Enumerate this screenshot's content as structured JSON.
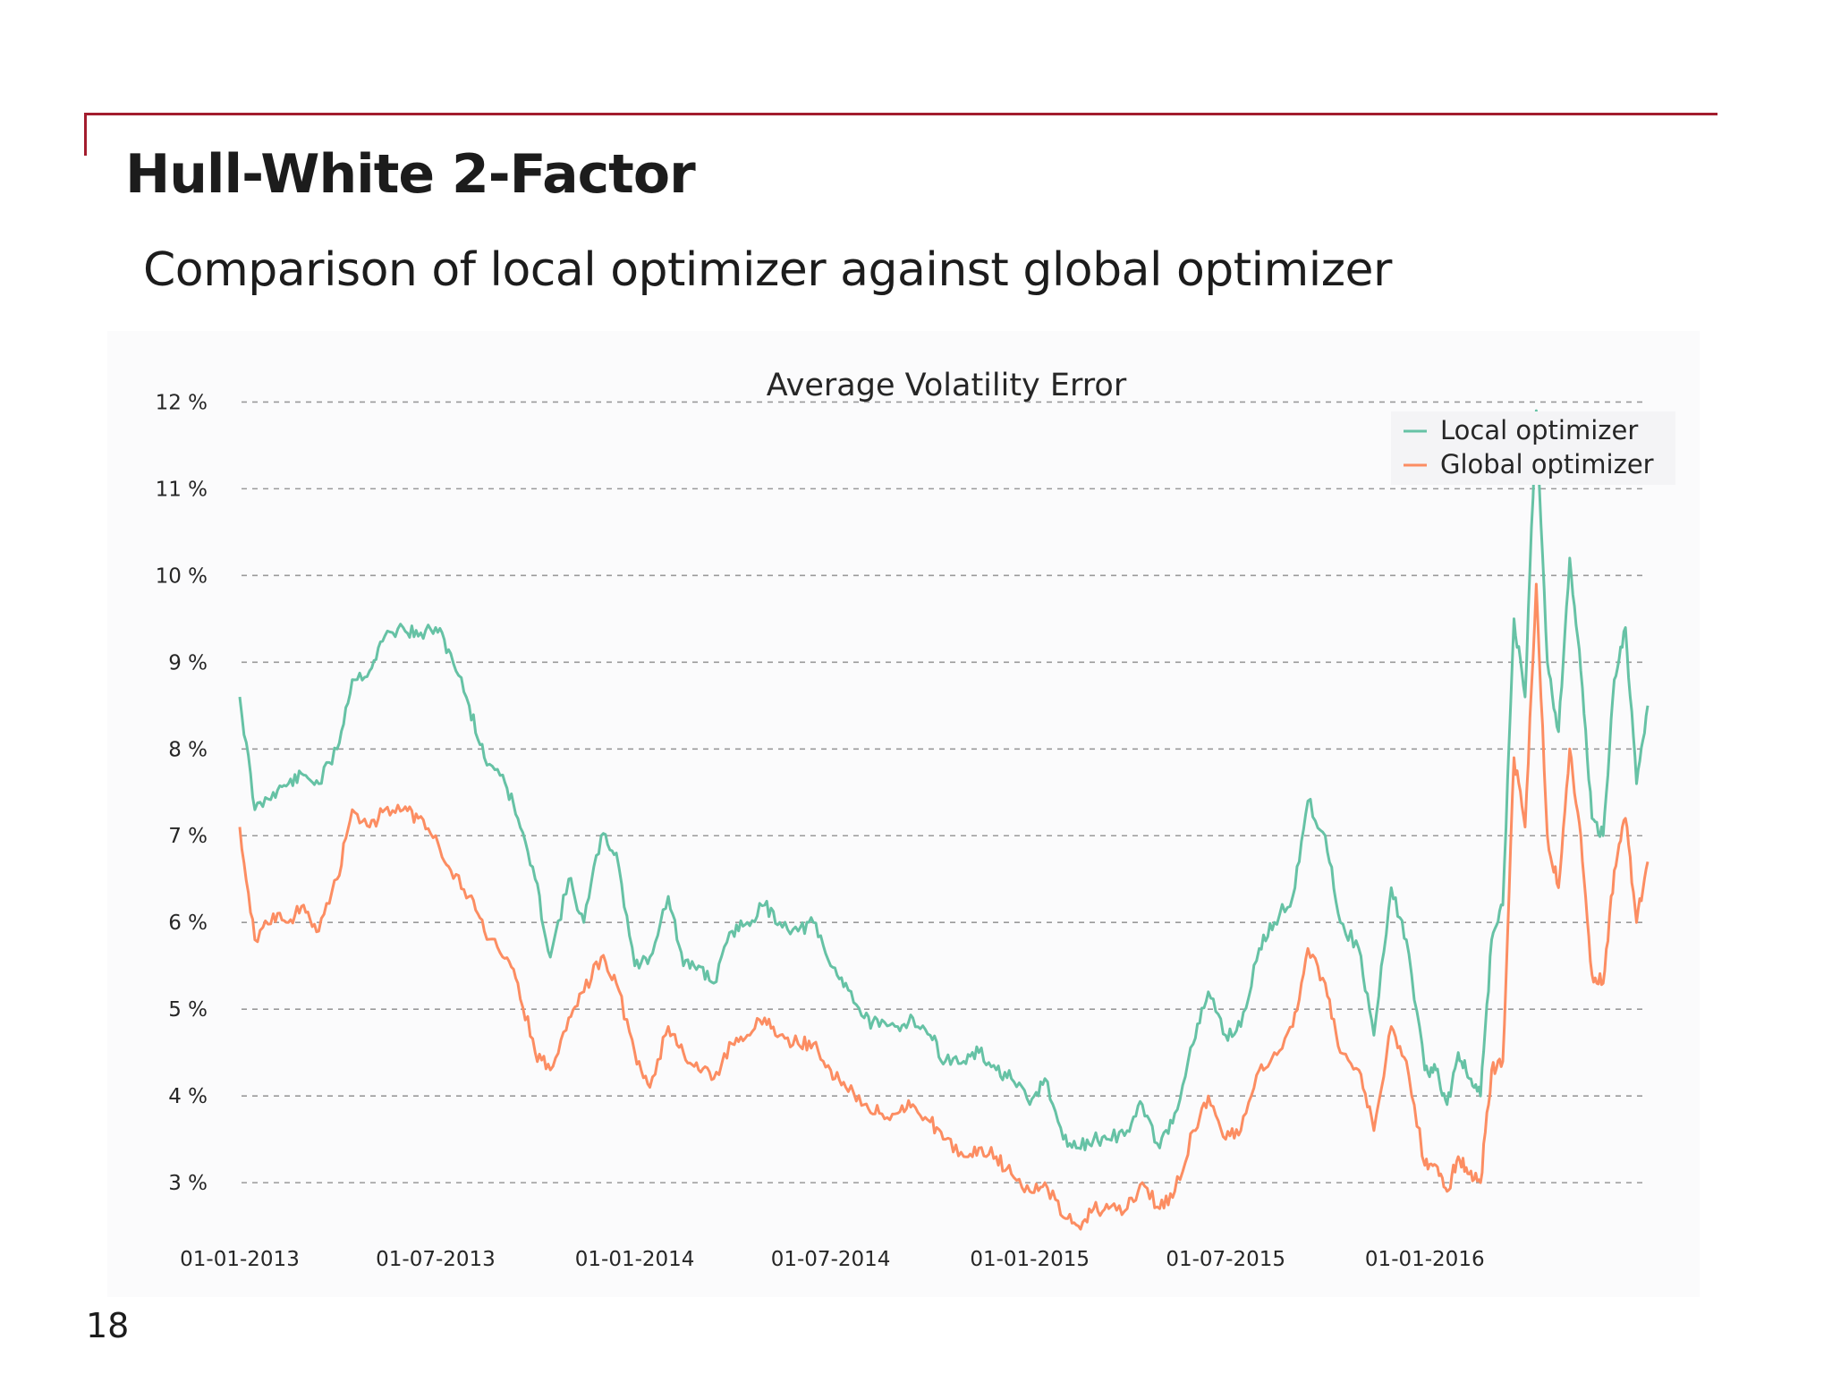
{
  "slide": {
    "title": "Hull-White 2-Factor",
    "subtitle": "Comparison of local optimizer against global optimizer",
    "page_number": "18",
    "accent_color": "#a31d2e"
  },
  "chart_data": {
    "type": "line",
    "title": "Average Volatility Error",
    "xlabel": "",
    "ylabel": "",
    "x_axis_type": "date",
    "x_range": [
      "2013-01-01",
      "2016-07-25"
    ],
    "xticks": [
      "2013-01-01",
      "2013-07-01",
      "2014-01-01",
      "2014-07-01",
      "2015-01-01",
      "2015-07-01",
      "2016-01-01"
    ],
    "xtick_labels": [
      "01-01-2013",
      "01-07-2013",
      "01-01-2014",
      "01-07-2014",
      "01-01-2015",
      "01-07-2015",
      "01-01-2016"
    ],
    "ylim": [
      2.3,
      12.2
    ],
    "yticks": [
      3,
      4,
      5,
      6,
      7,
      8,
      9,
      10,
      11,
      12
    ],
    "ytick_labels": [
      "3 %",
      "4 %",
      "5 %",
      "6 %",
      "7 %",
      "8 %",
      "9 %",
      "10 %",
      "11 %",
      "12 %"
    ],
    "grid": "horizontal dashed",
    "legend_position": "top-right",
    "x": [
      "2013-01-01",
      "2013-01-15",
      "2013-02-01",
      "2013-02-15",
      "2013-03-01",
      "2013-03-15",
      "2013-04-01",
      "2013-04-15",
      "2013-05-01",
      "2013-05-15",
      "2013-06-01",
      "2013-06-15",
      "2013-07-01",
      "2013-07-15",
      "2013-08-01",
      "2013-08-15",
      "2013-09-01",
      "2013-09-15",
      "2013-10-01",
      "2013-10-15",
      "2013-11-01",
      "2013-11-15",
      "2013-12-01",
      "2013-12-15",
      "2014-01-01",
      "2014-01-15",
      "2014-02-01",
      "2014-02-15",
      "2014-03-01",
      "2014-03-15",
      "2014-04-01",
      "2014-04-15",
      "2014-05-01",
      "2014-05-15",
      "2014-06-01",
      "2014-06-15",
      "2014-07-01",
      "2014-07-15",
      "2014-08-01",
      "2014-08-15",
      "2014-09-01",
      "2014-09-15",
      "2014-10-01",
      "2014-10-15",
      "2014-11-01",
      "2014-11-15",
      "2014-12-01",
      "2014-12-15",
      "2015-01-01",
      "2015-01-15",
      "2015-02-01",
      "2015-02-15",
      "2015-03-01",
      "2015-03-15",
      "2015-04-01",
      "2015-04-15",
      "2015-05-01",
      "2015-05-15",
      "2015-06-01",
      "2015-06-15",
      "2015-07-01",
      "2015-07-15",
      "2015-08-01",
      "2015-08-15",
      "2015-09-01",
      "2015-09-15",
      "2015-10-01",
      "2015-10-15",
      "2015-11-01",
      "2015-11-15",
      "2015-12-01",
      "2015-12-15",
      "2016-01-01",
      "2016-01-15",
      "2016-02-01",
      "2016-02-15",
      "2016-03-01",
      "2016-03-15",
      "2016-04-01",
      "2016-04-15",
      "2016-05-01",
      "2016-05-15",
      "2016-06-01",
      "2016-06-15",
      "2016-07-01",
      "2016-07-15",
      "2016-07-25"
    ],
    "series": [
      {
        "name": "Local optimizer",
        "color": "#66c2a5",
        "values": [
          8.6,
          7.3,
          7.5,
          7.6,
          7.7,
          7.6,
          8.0,
          8.8,
          8.9,
          9.3,
          9.4,
          9.3,
          9.4,
          9.1,
          8.5,
          7.9,
          7.7,
          7.2,
          6.5,
          5.6,
          6.5,
          6.0,
          7.0,
          6.8,
          5.5,
          5.6,
          6.3,
          5.5,
          5.5,
          5.3,
          5.9,
          6.0,
          6.2,
          6.0,
          5.9,
          6.0,
          5.5,
          5.3,
          4.9,
          4.8,
          4.8,
          4.9,
          4.7,
          4.4,
          4.4,
          4.5,
          4.3,
          4.2,
          3.9,
          4.2,
          3.5,
          3.4,
          3.5,
          3.5,
          3.6,
          3.9,
          3.4,
          3.8,
          4.6,
          5.2,
          4.7,
          4.8,
          5.7,
          6.0,
          6.3,
          7.4,
          7.0,
          6.0,
          5.7,
          4.7,
          6.4,
          5.8,
          6.3,
          6.1,
          5.1,
          4.5,
          4.6,
          4.3,
          4.1,
          3.8,
          3.5,
          3.9,
          4.4,
          4.6,
          5.4,
          5.0,
          4.8
        ],
        "values_tail": [
          4.3,
          4.3,
          3.9,
          4.5,
          4.2,
          4.0,
          5.8,
          6.2,
          9.5,
          8.6,
          11.9,
          9.0,
          8.2,
          10.2,
          8.9,
          7.2,
          7.0,
          8.8,
          9.4,
          7.6,
          8.5
        ]
      },
      {
        "name": "Global optimizer",
        "color": "#fc8d62",
        "values": [
          7.1,
          5.8,
          6.1,
          6.0,
          6.2,
          5.9,
          6.5,
          7.3,
          7.1,
          7.3,
          7.3,
          7.2,
          7.0,
          6.6,
          6.3,
          5.9,
          5.6,
          5.3,
          4.5,
          4.3,
          4.9,
          5.2,
          5.6,
          5.3,
          4.5,
          4.1,
          4.8,
          4.5,
          4.3,
          4.2,
          4.6,
          4.7,
          4.9,
          4.7,
          4.6,
          4.6,
          4.3,
          4.1,
          3.9,
          3.8,
          3.8,
          3.9,
          3.7,
          3.5,
          3.3,
          3.4,
          3.3,
          3.1,
          2.9,
          3.0,
          2.6,
          2.5,
          2.7,
          2.7,
          2.7,
          3.0,
          2.7,
          2.9,
          3.6,
          4.0,
          3.5,
          3.6,
          4.3,
          4.5,
          4.8,
          5.7,
          5.3,
          4.5,
          4.3,
          3.6,
          4.8,
          4.4,
          4.7,
          4.5,
          3.9,
          3.2,
          3.3,
          3.0,
          2.9,
          2.7,
          2.6,
          2.8,
          3.2,
          3.4,
          3.8,
          3.6,
          3.5
        ],
        "values_tail": [
          3.2,
          3.2,
          2.9,
          3.3,
          3.1,
          3.0,
          4.3,
          4.4,
          7.9,
          7.1,
          9.9,
          7.0,
          6.4,
          8.0,
          7.0,
          5.4,
          5.3,
          6.6,
          7.2,
          6.0,
          6.7
        ]
      }
    ]
  }
}
